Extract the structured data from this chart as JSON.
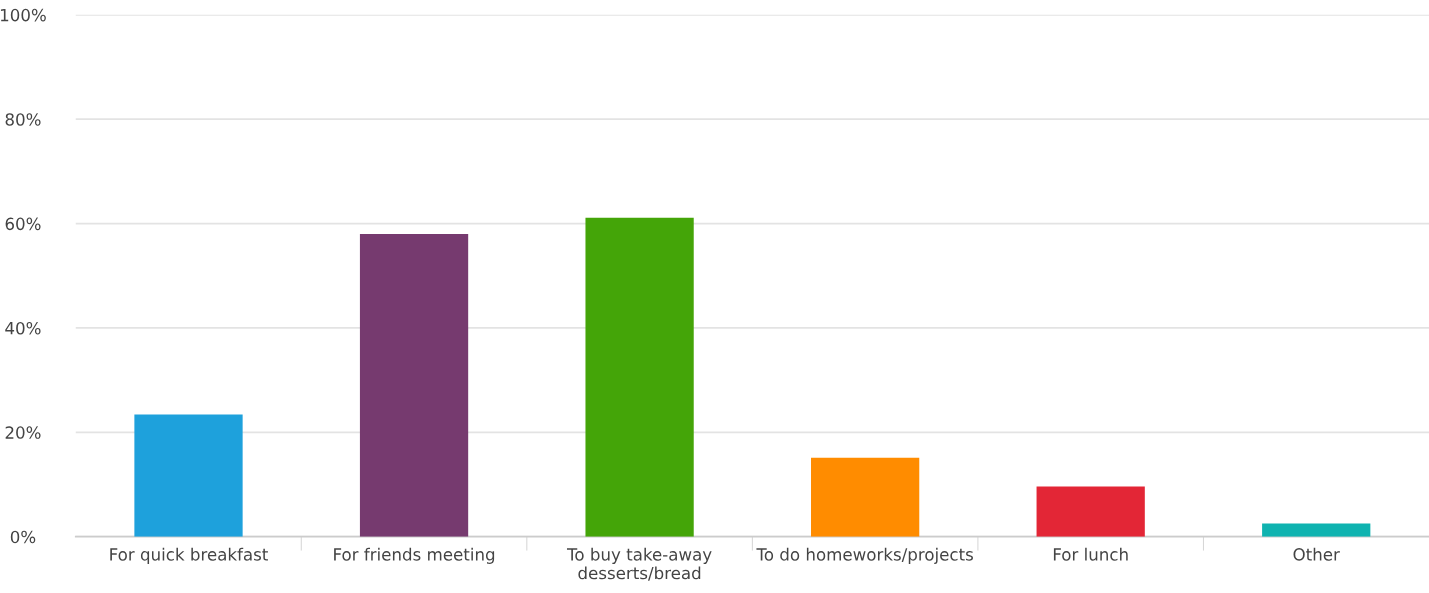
{
  "chart_data": {
    "type": "bar",
    "categories": [
      "For quick breakfast",
      "For friends meeting",
      "To buy take-away\ndesserts/bread",
      "To do homeworks/projects",
      "For lunch",
      "Other"
    ],
    "values": [
      23.4,
      58.0,
      61.1,
      15.1,
      9.6,
      2.5
    ],
    "colors": [
      "#1ea1dc",
      "#763a6f",
      "#44a508",
      "#ff8c00",
      "#e32636",
      "#0fb3b0"
    ],
    "ylim": [
      0,
      100
    ],
    "yticks": [
      {
        "value": 0,
        "label": "0%"
      },
      {
        "value": 20,
        "label": "20%"
      },
      {
        "value": 40,
        "label": "40%"
      },
      {
        "value": 60,
        "label": "60%"
      },
      {
        "value": 80,
        "label": "80%"
      },
      {
        "value": 100,
        "label": "100%"
      }
    ],
    "grid": "y"
  }
}
